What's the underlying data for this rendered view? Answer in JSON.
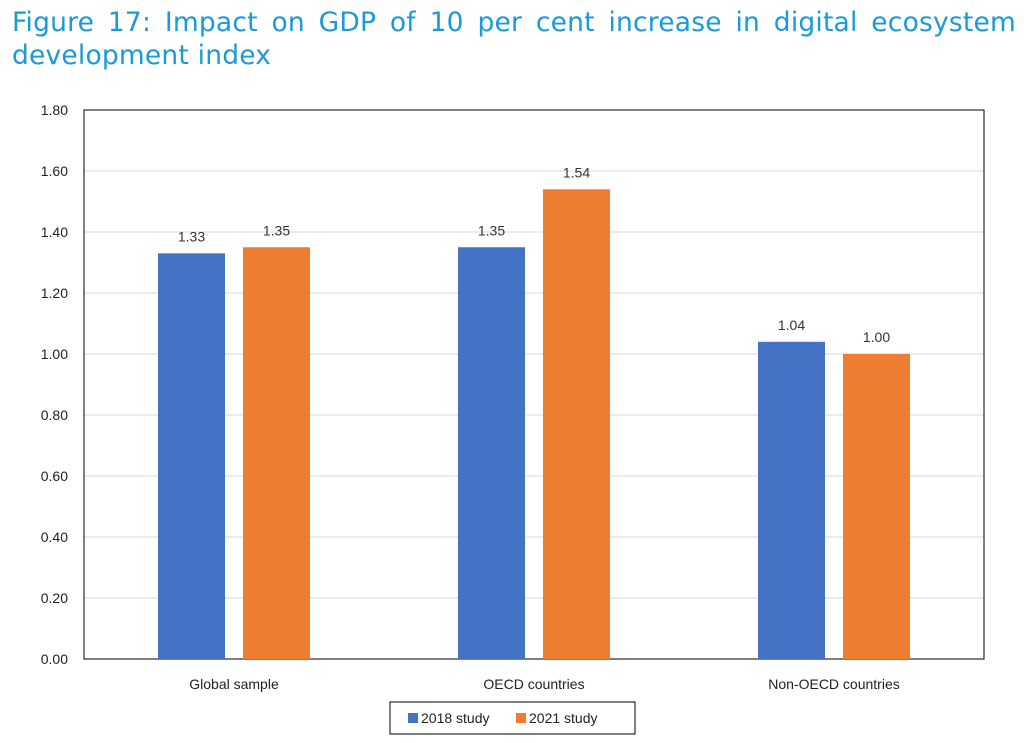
{
  "chart_data": {
    "type": "bar",
    "title": "Figure 17: Impact on GDP of 10 per cent increase in digital ecosystem development index",
    "categories": [
      "Global sample",
      "OECD countries",
      "Non-OECD countries"
    ],
    "series": [
      {
        "name": "2018 study",
        "values": [
          1.33,
          1.35,
          1.04
        ],
        "color": "#4472c4"
      },
      {
        "name": "2021 study",
        "values": [
          1.35,
          1.54,
          1.0
        ],
        "color": "#ed7d31"
      }
    ],
    "data_labels": [
      [
        "1.33",
        "1.35",
        "1.04"
      ],
      [
        "1.35",
        "1.54",
        "1.00"
      ]
    ],
    "yticks": [
      "0.00",
      "0.20",
      "0.40",
      "0.60",
      "0.80",
      "1.00",
      "1.20",
      "1.40",
      "1.60",
      "1.80"
    ],
    "ylim": [
      0,
      1.8
    ],
    "grid": true,
    "legend_position": "bottom"
  }
}
